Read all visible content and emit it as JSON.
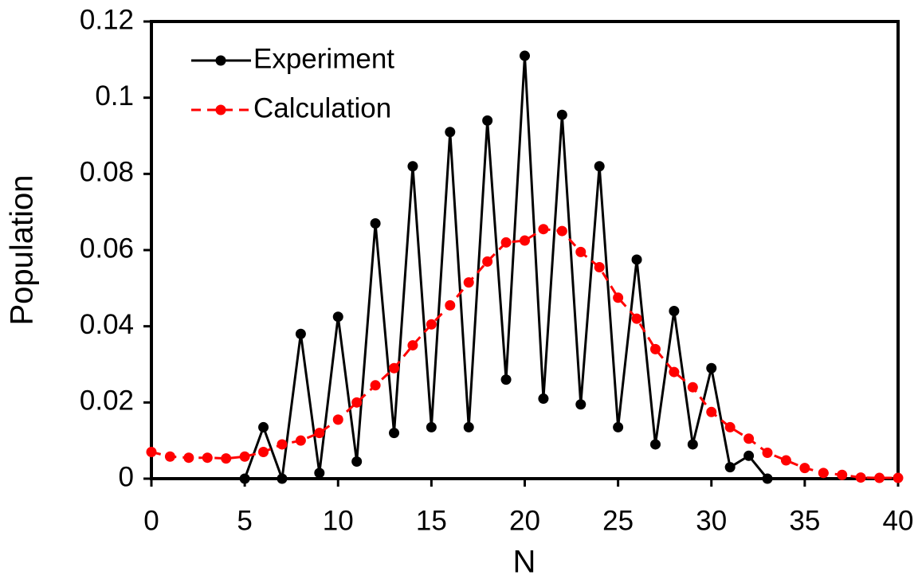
{
  "chart_data": {
    "type": "line",
    "xlabel": "N",
    "ylabel": "Population",
    "xlim": [
      0,
      40
    ],
    "ylim": [
      0,
      0.12
    ],
    "xticks": [
      0,
      5,
      10,
      15,
      20,
      25,
      30,
      35,
      40
    ],
    "yticks": [
      0,
      0.02,
      0.04,
      0.06,
      0.08,
      0.1,
      0.12
    ],
    "legend": "upper left",
    "series": [
      {
        "name": "Experiment",
        "color": "#000000",
        "linestyle": "solid",
        "x": [
          5,
          6,
          7,
          8,
          9,
          10,
          11,
          12,
          13,
          14,
          15,
          16,
          17,
          18,
          19,
          20,
          21,
          22,
          23,
          24,
          25,
          26,
          27,
          28,
          29,
          30,
          31,
          32,
          33
        ],
        "values": [
          0,
          0.0135,
          0,
          0.038,
          0.0015,
          0.0425,
          0.0045,
          0.067,
          0.012,
          0.082,
          0.0135,
          0.091,
          0.0135,
          0.094,
          0.026,
          0.111,
          0.021,
          0.0955,
          0.0195,
          0.082,
          0.0135,
          0.0575,
          0.009,
          0.044,
          0.009,
          0.029,
          0.003,
          0.006,
          0
        ]
      },
      {
        "name": "Calculation",
        "color": "#ff0000",
        "linestyle": "dashed",
        "x": [
          0,
          1,
          2,
          3,
          4,
          5,
          6,
          7,
          8,
          9,
          10,
          11,
          12,
          13,
          14,
          15,
          16,
          17,
          18,
          19,
          20,
          21,
          22,
          23,
          24,
          25,
          26,
          27,
          28,
          29,
          30,
          31,
          32,
          33,
          34,
          35,
          36,
          37,
          38,
          39,
          40
        ],
        "values": [
          0.007,
          0.0058,
          0.0055,
          0.0055,
          0.0053,
          0.0058,
          0.007,
          0.009,
          0.01,
          0.012,
          0.0155,
          0.02,
          0.0245,
          0.029,
          0.035,
          0.0405,
          0.0455,
          0.0515,
          0.057,
          0.062,
          0.0625,
          0.0655,
          0.065,
          0.0595,
          0.0555,
          0.0475,
          0.042,
          0.034,
          0.028,
          0.024,
          0.0175,
          0.0135,
          0.0105,
          0.0068,
          0.0048,
          0.0028,
          0.0015,
          0.001,
          0.0003,
          0.0002,
          0.0002
        ]
      }
    ]
  }
}
